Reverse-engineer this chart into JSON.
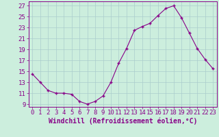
{
  "x": [
    0,
    1,
    2,
    3,
    4,
    5,
    6,
    7,
    8,
    9,
    10,
    11,
    12,
    13,
    14,
    15,
    16,
    17,
    18,
    19,
    20,
    21,
    22,
    23
  ],
  "y": [
    14.5,
    13.0,
    11.5,
    11.0,
    11.0,
    10.8,
    9.5,
    9.0,
    9.5,
    10.5,
    13.0,
    16.5,
    19.2,
    22.5,
    23.2,
    23.8,
    25.2,
    26.5,
    27.0,
    24.8,
    22.0,
    19.2,
    17.2,
    15.5
  ],
  "line_color": "#880088",
  "marker": "+",
  "marker_color": "#880088",
  "bg_color": "#cceedd",
  "grid_color": "#aacccc",
  "xlabel": "Windchill (Refroidissement éolien,°C)",
  "ylabel_ticks": [
    9,
    11,
    13,
    15,
    17,
    19,
    21,
    23,
    25,
    27
  ],
  "xlim": [
    -0.5,
    23.5
  ],
  "ylim": [
    8.5,
    27.8
  ],
  "xticks": [
    0,
    1,
    2,
    3,
    4,
    5,
    6,
    7,
    8,
    9,
    10,
    11,
    12,
    13,
    14,
    15,
    16,
    17,
    18,
    19,
    20,
    21,
    22,
    23
  ],
  "tick_fontsize": 6.5,
  "xlabel_fontsize": 7,
  "axis_color": "#880088",
  "linewidth": 0.8,
  "markersize": 3.5
}
